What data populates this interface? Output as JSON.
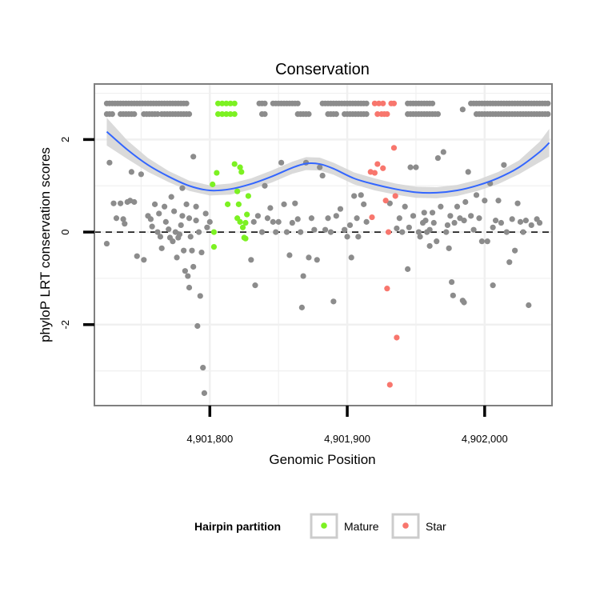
{
  "chart_data": {
    "type": "scatter",
    "title": "Conservation",
    "xlabel": "Genomic Position",
    "ylabel": "phyloP LRT conservation scores",
    "xlim": [
      4901716,
      4902049
    ],
    "ylim": [
      -3.75,
      3.2
    ],
    "x_ticks": [
      4901800,
      4901900,
      4902000
    ],
    "x_tick_labels": [
      "4,901,800",
      "4,901,900",
      "4,902,000"
    ],
    "y_ticks": [
      -2,
      0,
      2
    ],
    "y_tick_labels": [
      "-2",
      "0",
      "2"
    ],
    "reference_line": {
      "y": 0,
      "style": "dashed"
    },
    "grid": true,
    "legend": {
      "title": "Hairpin partition",
      "position": "bottom",
      "entries": [
        {
          "label": "Mature",
          "color": "#7cf122"
        },
        {
          "label": "Star",
          "color": "#f8766d"
        }
      ]
    },
    "colors": {
      "background": "#ffffff",
      "panel_border": "#7f7f7f",
      "grid": "#f0f0f0",
      "other": "#8c8c8c",
      "mature": "#7cf122",
      "star": "#f8766d",
      "smooth": "#3366ff",
      "ribbon": "#d3d3d3"
    },
    "smooth": {
      "x": [
        4901725,
        4901740,
        4901755,
        4901770,
        4901785,
        4901800,
        4901815,
        4901830,
        4901845,
        4901860,
        4901870,
        4901880,
        4901890,
        4901905,
        4901920,
        4901935,
        4901950,
        4901965,
        4901980,
        4901995,
        4902010,
        4902025,
        4902040,
        4902047
      ],
      "y": [
        2.17,
        1.78,
        1.45,
        1.2,
        1.0,
        0.9,
        0.93,
        1.04,
        1.2,
        1.39,
        1.48,
        1.47,
        1.37,
        1.16,
        1.03,
        0.93,
        0.86,
        0.85,
        0.9,
        1.01,
        1.17,
        1.4,
        1.73,
        1.93
      ],
      "se": [
        0.3,
        0.2,
        0.15,
        0.12,
        0.11,
        0.11,
        0.12,
        0.12,
        0.13,
        0.13,
        0.14,
        0.14,
        0.13,
        0.13,
        0.13,
        0.12,
        0.12,
        0.12,
        0.12,
        0.12,
        0.13,
        0.15,
        0.22,
        0.3
      ]
    },
    "series": [
      {
        "name": "Mature",
        "points": [
          [
            4901802,
            1.03
          ],
          [
            4901803,
            0.0
          ],
          [
            4901803,
            -0.32
          ],
          [
            4901805,
            1.28
          ],
          [
            4901813,
            0.6
          ],
          [
            4901818,
            1.47
          ],
          [
            4901820,
            0.3
          ],
          [
            4901820,
            0.88
          ],
          [
            4901821,
            0.6
          ],
          [
            4901822,
            1.4
          ],
          [
            4901822,
            0.22
          ],
          [
            4901823,
            1.3
          ],
          [
            4901824,
            0.1
          ],
          [
            4901825,
            -0.12
          ],
          [
            4901826,
            0.2
          ],
          [
            4901827,
            0.38
          ],
          [
            4901828,
            0.78
          ],
          [
            4901826,
            -0.14
          ],
          [
            4901806,
            2.78
          ],
          [
            4901809,
            2.78
          ],
          [
            4901812,
            2.78
          ],
          [
            4901815,
            2.78
          ],
          [
            4901818,
            2.78
          ],
          [
            4901806,
            2.55
          ],
          [
            4901809,
            2.55
          ],
          [
            4901812,
            2.55
          ],
          [
            4901815,
            2.55
          ],
          [
            4901818,
            2.55
          ]
        ]
      },
      {
        "name": "Star",
        "points": [
          [
            4901917,
            1.3
          ],
          [
            4901918,
            0.32
          ],
          [
            4901920,
            1.28
          ],
          [
            4901922,
            1.47
          ],
          [
            4901926,
            1.38
          ],
          [
            4901928,
            0.68
          ],
          [
            4901929,
            -1.22
          ],
          [
            4901930,
            0.0
          ],
          [
            4901931,
            -3.3
          ],
          [
            4901934,
            1.82
          ],
          [
            4901935,
            0.78
          ],
          [
            4901936,
            -2.28
          ],
          [
            4901920,
            2.78
          ],
          [
            4901923,
            2.78
          ],
          [
            4901926,
            2.78
          ],
          [
            4901932,
            2.78
          ],
          [
            4901934,
            2.78
          ],
          [
            4901922,
            2.55
          ],
          [
            4901925,
            2.55
          ],
          [
            4901927,
            2.55
          ],
          [
            4901929,
            2.55
          ]
        ]
      },
      {
        "points": [
          [
            4901725,
            -0.25
          ],
          [
            4901727,
            1.5
          ],
          [
            4901730,
            0.62
          ],
          [
            4901732,
            0.3
          ],
          [
            4901735,
            0.62
          ],
          [
            4901737,
            0.28
          ],
          [
            4901738,
            0.18
          ],
          [
            4901740,
            0.65
          ],
          [
            4901742,
            0.68
          ],
          [
            4901743,
            1.3
          ],
          [
            4901745,
            0.65
          ],
          [
            4901747,
            -0.52
          ],
          [
            4901750,
            1.25
          ],
          [
            4901752,
            -0.6
          ],
          [
            4901755,
            0.35
          ],
          [
            4901757,
            0.28
          ],
          [
            4901758,
            0.12
          ],
          [
            4901760,
            0.6
          ],
          [
            4901762,
            0.0
          ],
          [
            4901763,
            0.4
          ],
          [
            4901764,
            -0.1
          ],
          [
            4901765,
            -0.35
          ],
          [
            4901767,
            0.55
          ],
          [
            4901768,
            0.22
          ],
          [
            4901770,
            0.06
          ],
          [
            4901771,
            -0.12
          ],
          [
            4901772,
            0.76
          ],
          [
            4901773,
            -0.2
          ],
          [
            4901774,
            0.45
          ],
          [
            4901775,
            0.0
          ],
          [
            4901776,
            -0.55
          ],
          [
            4901777,
            -0.12
          ],
          [
            4901778,
            -0.05
          ],
          [
            4901779,
            0.15
          ],
          [
            4901780,
            0.35
          ],
          [
            4901781,
            -0.4
          ],
          [
            4901782,
            -0.84
          ],
          [
            4901783,
            0.6
          ],
          [
            4901784,
            -0.95
          ],
          [
            4901785,
            -1.2
          ],
          [
            4901785,
            0.3
          ],
          [
            4901786,
            -0.1
          ],
          [
            4901787,
            -0.4
          ],
          [
            4901788,
            -0.75
          ],
          [
            4901788,
            1.63
          ],
          [
            4901790,
            0.25
          ],
          [
            4901791,
            -2.03
          ],
          [
            4901792,
            0.0
          ],
          [
            4901793,
            -1.38
          ],
          [
            4901794,
            -0.44
          ],
          [
            4901795,
            -2.93
          ],
          [
            4901796,
            -3.48
          ],
          [
            4901797,
            0.4
          ],
          [
            4901798,
            0.1
          ],
          [
            4901780,
            0.95
          ],
          [
            4901790,
            0.55
          ],
          [
            4901800,
            0.22
          ],
          [
            4901830,
            -0.6
          ],
          [
            4901832,
            0.22
          ],
          [
            4901833,
            -1.15
          ],
          [
            4901835,
            0.35
          ],
          [
            4901838,
            0.0
          ],
          [
            4901840,
            1.0
          ],
          [
            4901842,
            0.3
          ],
          [
            4901844,
            0.52
          ],
          [
            4901846,
            0.22
          ],
          [
            4901848,
            0.0
          ],
          [
            4901850,
            0.22
          ],
          [
            4901852,
            1.5
          ],
          [
            4901854,
            0.6
          ],
          [
            4901856,
            0.0
          ],
          [
            4901858,
            -0.5
          ],
          [
            4901860,
            0.2
          ],
          [
            4901862,
            0.62
          ],
          [
            4901864,
            0.28
          ],
          [
            4901866,
            0.0
          ],
          [
            4901867,
            -1.63
          ],
          [
            4901868,
            -0.95
          ],
          [
            4901870,
            1.5
          ],
          [
            4901872,
            -0.55
          ],
          [
            4901874,
            0.3
          ],
          [
            4901876,
            0.05
          ],
          [
            4901878,
            -0.6
          ],
          [
            4901880,
            1.4
          ],
          [
            4901882,
            1.22
          ],
          [
            4901884,
            0.05
          ],
          [
            4901886,
            0.3
          ],
          [
            4901888,
            0.0
          ],
          [
            4901890,
            -1.5
          ],
          [
            4901892,
            0.35
          ],
          [
            4901895,
            0.5
          ],
          [
            4901898,
            0.05
          ],
          [
            4901900,
            -0.1
          ],
          [
            4901902,
            0.15
          ],
          [
            4901903,
            -0.55
          ],
          [
            4901905,
            0.78
          ],
          [
            4901907,
            0.3
          ],
          [
            4901908,
            -0.1
          ],
          [
            4901910,
            0.8
          ],
          [
            4901912,
            0.6
          ],
          [
            4901914,
            0.22
          ],
          [
            4901938,
            0.3
          ],
          [
            4901940,
            0.0
          ],
          [
            4901942,
            0.55
          ],
          [
            4901944,
            -0.8
          ],
          [
            4901945,
            0.1
          ],
          [
            4901946,
            1.4
          ],
          [
            4901948,
            0.35
          ],
          [
            4901950,
            1.4
          ],
          [
            4901952,
            0.0
          ],
          [
            4901953,
            -0.1
          ],
          [
            4901955,
            0.2
          ],
          [
            4901956,
            0.42
          ],
          [
            4901958,
            0.0
          ],
          [
            4901960,
            -0.3
          ],
          [
            4901962,
            0.42
          ],
          [
            4901963,
            0.2
          ],
          [
            4901965,
            -0.2
          ],
          [
            4901966,
            1.6
          ],
          [
            4901968,
            0.55
          ],
          [
            4901970,
            1.73
          ],
          [
            4901972,
            0.0
          ],
          [
            4901973,
            0.15
          ],
          [
            4901974,
            -0.35
          ],
          [
            4901975,
            0.35
          ],
          [
            4901976,
            -1.08
          ],
          [
            4901977,
            -1.37
          ],
          [
            4901978,
            0.2
          ],
          [
            4901980,
            0.55
          ],
          [
            4901982,
            0.3
          ],
          [
            4901984,
            -1.48
          ],
          [
            4901985,
            -1.52
          ],
          [
            4901986,
            0.65
          ],
          [
            4901988,
            1.3
          ],
          [
            4901990,
            0.35
          ],
          [
            4901992,
            0.05
          ],
          [
            4901994,
            0.8
          ],
          [
            4901996,
            0.3
          ],
          [
            4901998,
            -0.2
          ],
          [
            4902000,
            0.68
          ],
          [
            4902002,
            -0.2
          ],
          [
            4902004,
            1.05
          ],
          [
            4902006,
            -1.15
          ],
          [
            4902008,
            0.25
          ],
          [
            4902010,
            0.68
          ],
          [
            4902012,
            0.2
          ],
          [
            4902014,
            1.45
          ],
          [
            4902016,
            0.0
          ],
          [
            4902018,
            -0.65
          ],
          [
            4902020,
            0.28
          ],
          [
            4902022,
            -0.4
          ],
          [
            4902024,
            0.62
          ],
          [
            4902026,
            0.22
          ],
          [
            4902028,
            0.0
          ],
          [
            4902030,
            0.25
          ],
          [
            4902032,
            -1.58
          ],
          [
            4902034,
            0.15
          ],
          [
            4902038,
            0.28
          ],
          [
            4902040,
            0.2
          ],
          [
            4902006,
            0.1
          ],
          [
            4901985,
            0.25
          ],
          [
            4901960,
            0.05
          ],
          [
            4901957,
            0.25
          ],
          [
            4901931,
            0.62
          ],
          [
            4901936,
            0.08
          ]
        ]
      }
    ],
    "other_top_rows": [
      {
        "y": 2.78,
        "x_ranges": [
          [
            4901725,
            4901784
          ],
          [
            4901836,
            4901840
          ],
          [
            4901846,
            4901865
          ],
          [
            4901882,
            4901914
          ],
          [
            4901944,
            4901962
          ],
          [
            4901990,
            4902046
          ]
        ]
      },
      {
        "y": 2.55,
        "x_ranges": [
          [
            4901725,
            4901730
          ],
          [
            4901735,
            4901745
          ],
          [
            4901752,
            4901762
          ],
          [
            4901765,
            4901785
          ],
          [
            4901838,
            4901841
          ],
          [
            4901864,
            4901872
          ],
          [
            4901886,
            4901892
          ],
          [
            4901898,
            4901914
          ],
          [
            4901944,
            4901966
          ],
          [
            4901994,
            4902046
          ]
        ]
      },
      {
        "y": 2.65,
        "x_ranges": [
          [
            4901984,
            4901984
          ]
        ]
      }
    ]
  }
}
